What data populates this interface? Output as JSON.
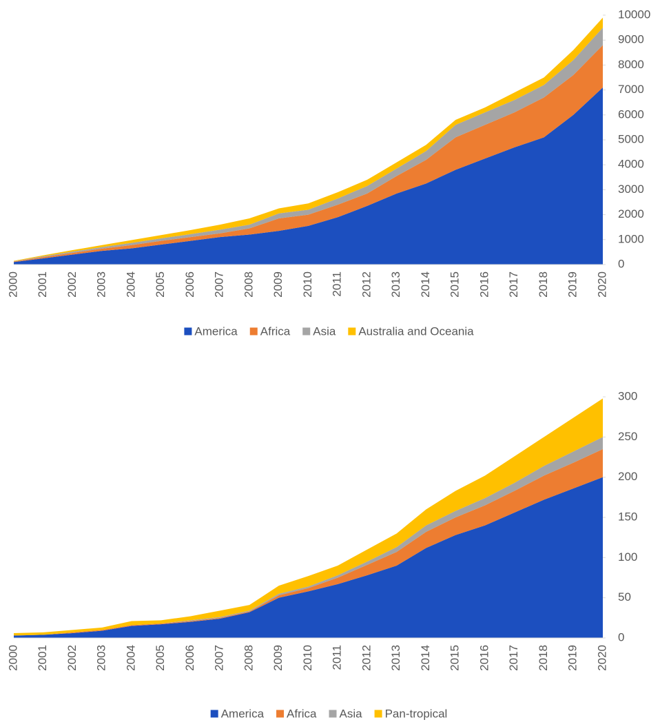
{
  "chart_data": [
    {
      "type": "area",
      "stacked": true,
      "legend": "bottom",
      "categories": [
        "2000",
        "2001",
        "2002",
        "2003",
        "2004",
        "2005",
        "2006",
        "2007",
        "2008",
        "2009",
        "2010",
        "2011",
        "2012",
        "2013",
        "2014",
        "2015",
        "2016",
        "2017",
        "2018",
        "2019",
        "2020"
      ],
      "ylim": [
        0,
        10000
      ],
      "yticks": [
        0,
        1000,
        2000,
        3000,
        4000,
        5000,
        6000,
        7000,
        8000,
        9000,
        10000
      ],
      "series": [
        {
          "name": "America",
          "color": "#1c4fbf",
          "values": [
            100,
            250,
            400,
            550,
            650,
            800,
            950,
            1100,
            1200,
            1350,
            1550,
            1900,
            2350,
            2850,
            3250,
            3800,
            4250,
            4700,
            5100,
            6000,
            7100
          ]
        },
        {
          "name": "Africa",
          "color": "#ed7d31",
          "values": [
            20,
            50,
            70,
            90,
            130,
            150,
            150,
            150,
            250,
            500,
            450,
            500,
            500,
            700,
            950,
            1300,
            1350,
            1400,
            1600,
            1600,
            1700
          ]
        },
        {
          "name": "Asia",
          "color": "#a5a5a5",
          "values": [
            10,
            30,
            50,
            60,
            90,
            100,
            120,
            150,
            150,
            200,
            200,
            250,
            300,
            300,
            350,
            500,
            500,
            500,
            500,
            600,
            700
          ]
        },
        {
          "name": "Australia and Oceania",
          "color": "#ffc000",
          "values": [
            20,
            40,
            60,
            80,
            110,
            130,
            160,
            200,
            250,
            200,
            250,
            250,
            250,
            250,
            250,
            200,
            200,
            300,
            300,
            400,
            400
          ]
        }
      ]
    },
    {
      "type": "area",
      "stacked": true,
      "legend": "bottom",
      "categories": [
        "2000",
        "2001",
        "2002",
        "2003",
        "2004",
        "2005",
        "2006",
        "2007",
        "2008",
        "2009",
        "2010",
        "2011",
        "2012",
        "2013",
        "2014",
        "2015",
        "2016",
        "2017",
        "2018",
        "2019",
        "2020"
      ],
      "ylim": [
        0,
        300
      ],
      "yticks": [
        0,
        50,
        100,
        150,
        200,
        250,
        300
      ],
      "series": [
        {
          "name": "America",
          "color": "#1c4fbf",
          "values": [
            3,
            4,
            6,
            9,
            15,
            17,
            20,
            24,
            32,
            50,
            58,
            67,
            78,
            90,
            112,
            128,
            140,
            156,
            172,
            186,
            200
          ]
        },
        {
          "name": "Africa",
          "color": "#ed7d31",
          "values": [
            0,
            0,
            1,
            1,
            1,
            1,
            1,
            1,
            1,
            3,
            4,
            8,
            13,
            17,
            20,
            22,
            25,
            27,
            30,
            32,
            35
          ]
        },
        {
          "name": "Asia",
          "color": "#a5a5a5",
          "values": [
            0,
            0,
            0,
            0,
            0,
            0,
            1,
            1,
            1,
            2,
            2,
            3,
            4,
            6,
            8,
            8,
            9,
            10,
            12,
            14,
            15
          ]
        },
        {
          "name": "Pan-tropical",
          "color": "#ffc000",
          "values": [
            3,
            3,
            3,
            3,
            5,
            4,
            5,
            8,
            7,
            10,
            13,
            12,
            15,
            17,
            20,
            25,
            28,
            33,
            36,
            42,
            48
          ]
        }
      ]
    }
  ]
}
